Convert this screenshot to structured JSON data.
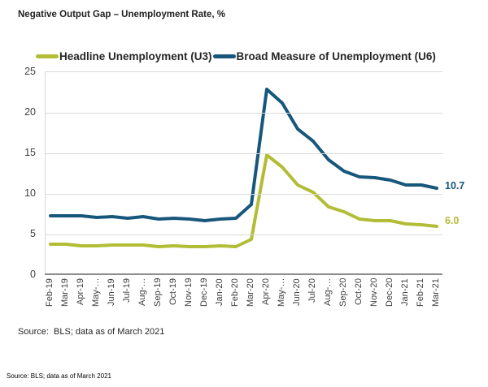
{
  "header": {
    "title": "Negative Output Gap – Unemployment Rate, %"
  },
  "footer": {
    "source": "Source:  BLS; data as of March 2021",
    "small_source": "Source: BLS; data as of March 2021"
  },
  "chart_data": {
    "type": "line",
    "title": "Negative Output Gap – Unemployment Rate, %",
    "legend_position": "top",
    "grid": true,
    "ylim": [
      0,
      25
    ],
    "yticks": [
      0,
      5,
      10,
      15,
      20,
      25
    ],
    "categories": [
      "Feb-19",
      "Mar-19",
      "Apr-19",
      "May-…",
      "Jun-19",
      "Jul-19",
      "Aug-…",
      "Sep-19",
      "Oct-19",
      "Nov-19",
      "Dec-19",
      "Jan-20",
      "Feb-20",
      "Mar-20",
      "Apr-20",
      "May-…",
      "Jun-20",
      "Jul-20",
      "Aug-…",
      "Sep-20",
      "Oct-20",
      "Nov-20",
      "Dec-20",
      "Jan-21",
      "Feb-21",
      "Mar-21"
    ],
    "series": [
      {
        "name": "Headline Unemployment (U3)",
        "color": "#b2bd35",
        "end_label": "6.0",
        "values": [
          3.8,
          3.8,
          3.6,
          3.6,
          3.7,
          3.7,
          3.7,
          3.5,
          3.6,
          3.5,
          3.5,
          3.6,
          3.5,
          4.4,
          14.8,
          13.3,
          11.1,
          10.2,
          8.4,
          7.8,
          6.9,
          6.7,
          6.7,
          6.3,
          6.2,
          6.0
        ]
      },
      {
        "name": "Broad Measure of Unemployment (U6)",
        "color": "#17577c",
        "end_label": "10.7",
        "values": [
          7.3,
          7.3,
          7.3,
          7.1,
          7.2,
          7.0,
          7.2,
          6.9,
          7.0,
          6.9,
          6.7,
          6.9,
          7.0,
          8.7,
          22.9,
          21.2,
          18.0,
          16.5,
          14.2,
          12.8,
          12.1,
          12.0,
          11.7,
          11.1,
          11.1,
          10.7
        ]
      }
    ]
  }
}
